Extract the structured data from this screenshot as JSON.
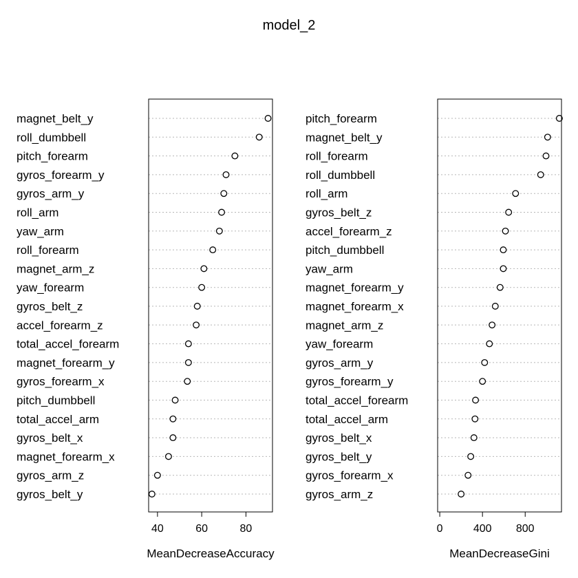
{
  "title": "model_2",
  "chart_data": [
    {
      "type": "scatter",
      "xlabel": "MeanDecreaseAccuracy",
      "xlim": [
        36,
        92
      ],
      "xticks": [
        40,
        60,
        80
      ],
      "grid": "horizontal dotted guide lines",
      "categories": [
        "magnet_belt_y",
        "roll_dumbbell",
        "pitch_forearm",
        "gyros_forearm_y",
        "gyros_arm_y",
        "roll_arm",
        "yaw_arm",
        "roll_forearm",
        "magnet_arm_z",
        "yaw_forearm",
        "gyros_belt_z",
        "accel_forearm_z",
        "total_accel_forearm",
        "magnet_forearm_y",
        "gyros_forearm_x",
        "pitch_dumbbell",
        "total_accel_arm",
        "gyros_belt_x",
        "magnet_forearm_x",
        "gyros_arm_z",
        "gyros_belt_y"
      ],
      "values": [
        90,
        86,
        75,
        71,
        70,
        69,
        68,
        65,
        61,
        60,
        58,
        57.5,
        54,
        54,
        53.5,
        48,
        47,
        47,
        45,
        40,
        37.5
      ]
    },
    {
      "type": "scatter",
      "xlabel": "MeanDecreaseGini",
      "xlim": [
        -20,
        1140
      ],
      "xticks": [
        0,
        400,
        800
      ],
      "grid": "horizontal dotted guide lines",
      "categories": [
        "pitch_forearm",
        "magnet_belt_y",
        "roll_forearm",
        "roll_dumbbell",
        "roll_arm",
        "gyros_belt_z",
        "accel_forearm_z",
        "pitch_dumbbell",
        "yaw_arm",
        "magnet_forearm_y",
        "magnet_forearm_x",
        "magnet_arm_z",
        "yaw_forearm",
        "gyros_arm_y",
        "gyros_forearm_y",
        "total_accel_forearm",
        "total_accel_arm",
        "gyros_belt_x",
        "gyros_belt_y",
        "gyros_forearm_x",
        "gyros_arm_z"
      ],
      "values": [
        1120,
        1010,
        995,
        945,
        710,
        645,
        615,
        595,
        595,
        565,
        520,
        490,
        465,
        420,
        400,
        335,
        330,
        320,
        290,
        265,
        200
      ]
    }
  ]
}
